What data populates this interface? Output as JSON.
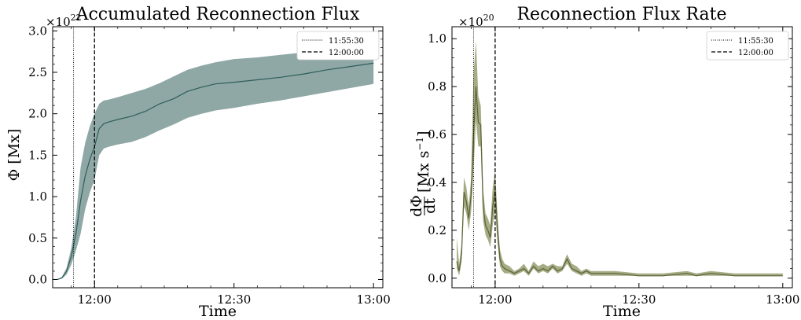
{
  "chart_data": [
    {
      "type": "area",
      "title": "Accumulated Reconnection Flux",
      "xlabel": "Time",
      "ylabel": "Φ [Mx]",
      "y_multiplier": "×10",
      "y_multiplier_exp": "22",
      "xlim_min": [
        -9,
        62
      ],
      "ylim": [
        -0.1,
        3.05
      ],
      "yticks": [
        0.0,
        0.5,
        1.0,
        1.5,
        2.0,
        2.5,
        3.0
      ],
      "ytick_labels": [
        "0.0",
        "0.5",
        "1.0",
        "1.5",
        "2.0",
        "2.5",
        "3.0"
      ],
      "xticks_min": [
        0,
        30,
        60
      ],
      "xtick_labels": [
        "12:00",
        "12:30",
        "13:00"
      ],
      "line_color": "#2e5e5a",
      "band_color": "#8fa8a6",
      "vlines": [
        {
          "x": -4.5,
          "style": "dotted",
          "label": "11:55:30"
        },
        {
          "x": 0,
          "style": "dashed",
          "label": "12:00:00"
        }
      ],
      "series": [
        {
          "x": [
            -8,
            -7,
            -6,
            -5,
            -4,
            -3,
            -2,
            -1,
            0,
            1,
            2,
            3,
            5,
            8,
            11,
            14,
            17,
            20,
            23,
            26,
            30,
            35,
            40,
            45,
            50,
            55,
            60
          ],
          "y": [
            0.0,
            0.02,
            0.1,
            0.28,
            0.55,
            0.95,
            1.25,
            1.45,
            1.6,
            1.82,
            1.88,
            1.9,
            1.93,
            1.97,
            2.03,
            2.12,
            2.18,
            2.27,
            2.32,
            2.36,
            2.38,
            2.41,
            2.44,
            2.48,
            2.53,
            2.57,
            2.61
          ],
          "lower": [
            0.0,
            0.01,
            0.06,
            0.18,
            0.35,
            0.55,
            0.85,
            1.05,
            1.2,
            1.5,
            1.58,
            1.6,
            1.63,
            1.66,
            1.72,
            1.8,
            1.87,
            1.95,
            2.0,
            2.04,
            2.07,
            2.12,
            2.16,
            2.21,
            2.26,
            2.31,
            2.36
          ],
          "upper": [
            0.0,
            0.03,
            0.14,
            0.38,
            0.75,
            1.35,
            1.65,
            1.85,
            2.0,
            2.12,
            2.16,
            2.17,
            2.2,
            2.25,
            2.3,
            2.37,
            2.45,
            2.53,
            2.58,
            2.62,
            2.66,
            2.68,
            2.71,
            2.74,
            2.78,
            2.81,
            2.84
          ]
        }
      ]
    },
    {
      "type": "area",
      "title": "Reconnection Flux Rate",
      "xlabel": "Time",
      "ylabel": "dΦ/dt [Mx s⁻¹]",
      "ylabel_num": "dΦ",
      "ylabel_den": "dt",
      "ylabel_rest": "[Mx s",
      "ylabel_sup": "−1",
      "ylabel_end": "]",
      "y_multiplier": "×10",
      "y_multiplier_exp": "20",
      "xlim_min": [
        -9,
        62
      ],
      "ylim": [
        -0.04,
        1.05
      ],
      "yticks": [
        0.0,
        0.2,
        0.4,
        0.6,
        0.8,
        1.0
      ],
      "ytick_labels": [
        "0.0",
        "0.2",
        "0.4",
        "0.6",
        "0.8",
        "1.0"
      ],
      "xticks_min": [
        0,
        30,
        60
      ],
      "xtick_labels": [
        "12:00",
        "12:30",
        "13:00"
      ],
      "line_color": "#5a6235",
      "band_color": "#a6ad86",
      "vlines": [
        {
          "x": -4.5,
          "style": "dotted",
          "label": "11:55:30"
        },
        {
          "x": 0,
          "style": "dashed",
          "label": "12:00:00"
        }
      ],
      "series": [
        {
          "x": [
            -8,
            -7.5,
            -7,
            -6.5,
            -6,
            -5.5,
            -5,
            -4.5,
            -4,
            -3.5,
            -3,
            -2.5,
            -2,
            -1.5,
            -1,
            -0.5,
            0,
            0.5,
            1,
            1.5,
            2,
            3,
            4,
            5,
            6,
            7,
            8,
            9,
            10,
            11,
            12,
            13,
            14,
            15,
            16,
            17,
            18,
            19,
            20,
            22,
            25,
            30,
            35,
            40,
            42,
            45,
            50,
            55,
            60
          ],
          "y": [
            0.07,
            0.03,
            0.1,
            0.36,
            0.32,
            0.25,
            0.35,
            0.6,
            0.8,
            0.65,
            0.64,
            0.3,
            0.22,
            0.2,
            0.17,
            0.3,
            0.37,
            0.2,
            0.08,
            0.05,
            0.04,
            0.03,
            0.02,
            0.03,
            0.04,
            0.02,
            0.05,
            0.03,
            0.04,
            0.03,
            0.05,
            0.03,
            0.04,
            0.08,
            0.04,
            0.03,
            0.02,
            0.03,
            0.02,
            0.02,
            0.02,
            0.01,
            0.01,
            0.02,
            0.01,
            0.02,
            0.01,
            0.01,
            0.01
          ],
          "lower": [
            0.04,
            0.01,
            0.07,
            0.3,
            0.27,
            0.2,
            0.28,
            0.45,
            0.66,
            0.55,
            0.55,
            0.24,
            0.18,
            0.16,
            0.13,
            0.22,
            0.28,
            0.15,
            0.05,
            0.03,
            0.02,
            0.02,
            0.01,
            0.02,
            0.03,
            0.01,
            0.04,
            0.02,
            0.03,
            0.02,
            0.04,
            0.02,
            0.03,
            0.06,
            0.03,
            0.02,
            0.01,
            0.02,
            0.01,
            0.01,
            0.01,
            0.01,
            0.01,
            0.01,
            0.01,
            0.01,
            0.01,
            0.01,
            0.01
          ],
          "upper": [
            0.17,
            0.06,
            0.14,
            0.42,
            0.38,
            0.3,
            0.42,
            0.85,
            0.99,
            0.76,
            0.72,
            0.37,
            0.27,
            0.25,
            0.22,
            0.38,
            0.45,
            0.26,
            0.12,
            0.08,
            0.06,
            0.05,
            0.03,
            0.04,
            0.06,
            0.03,
            0.07,
            0.05,
            0.06,
            0.05,
            0.06,
            0.05,
            0.05,
            0.1,
            0.06,
            0.05,
            0.03,
            0.04,
            0.03,
            0.03,
            0.03,
            0.02,
            0.02,
            0.03,
            0.02,
            0.03,
            0.02,
            0.02,
            0.02
          ]
        }
      ]
    }
  ]
}
